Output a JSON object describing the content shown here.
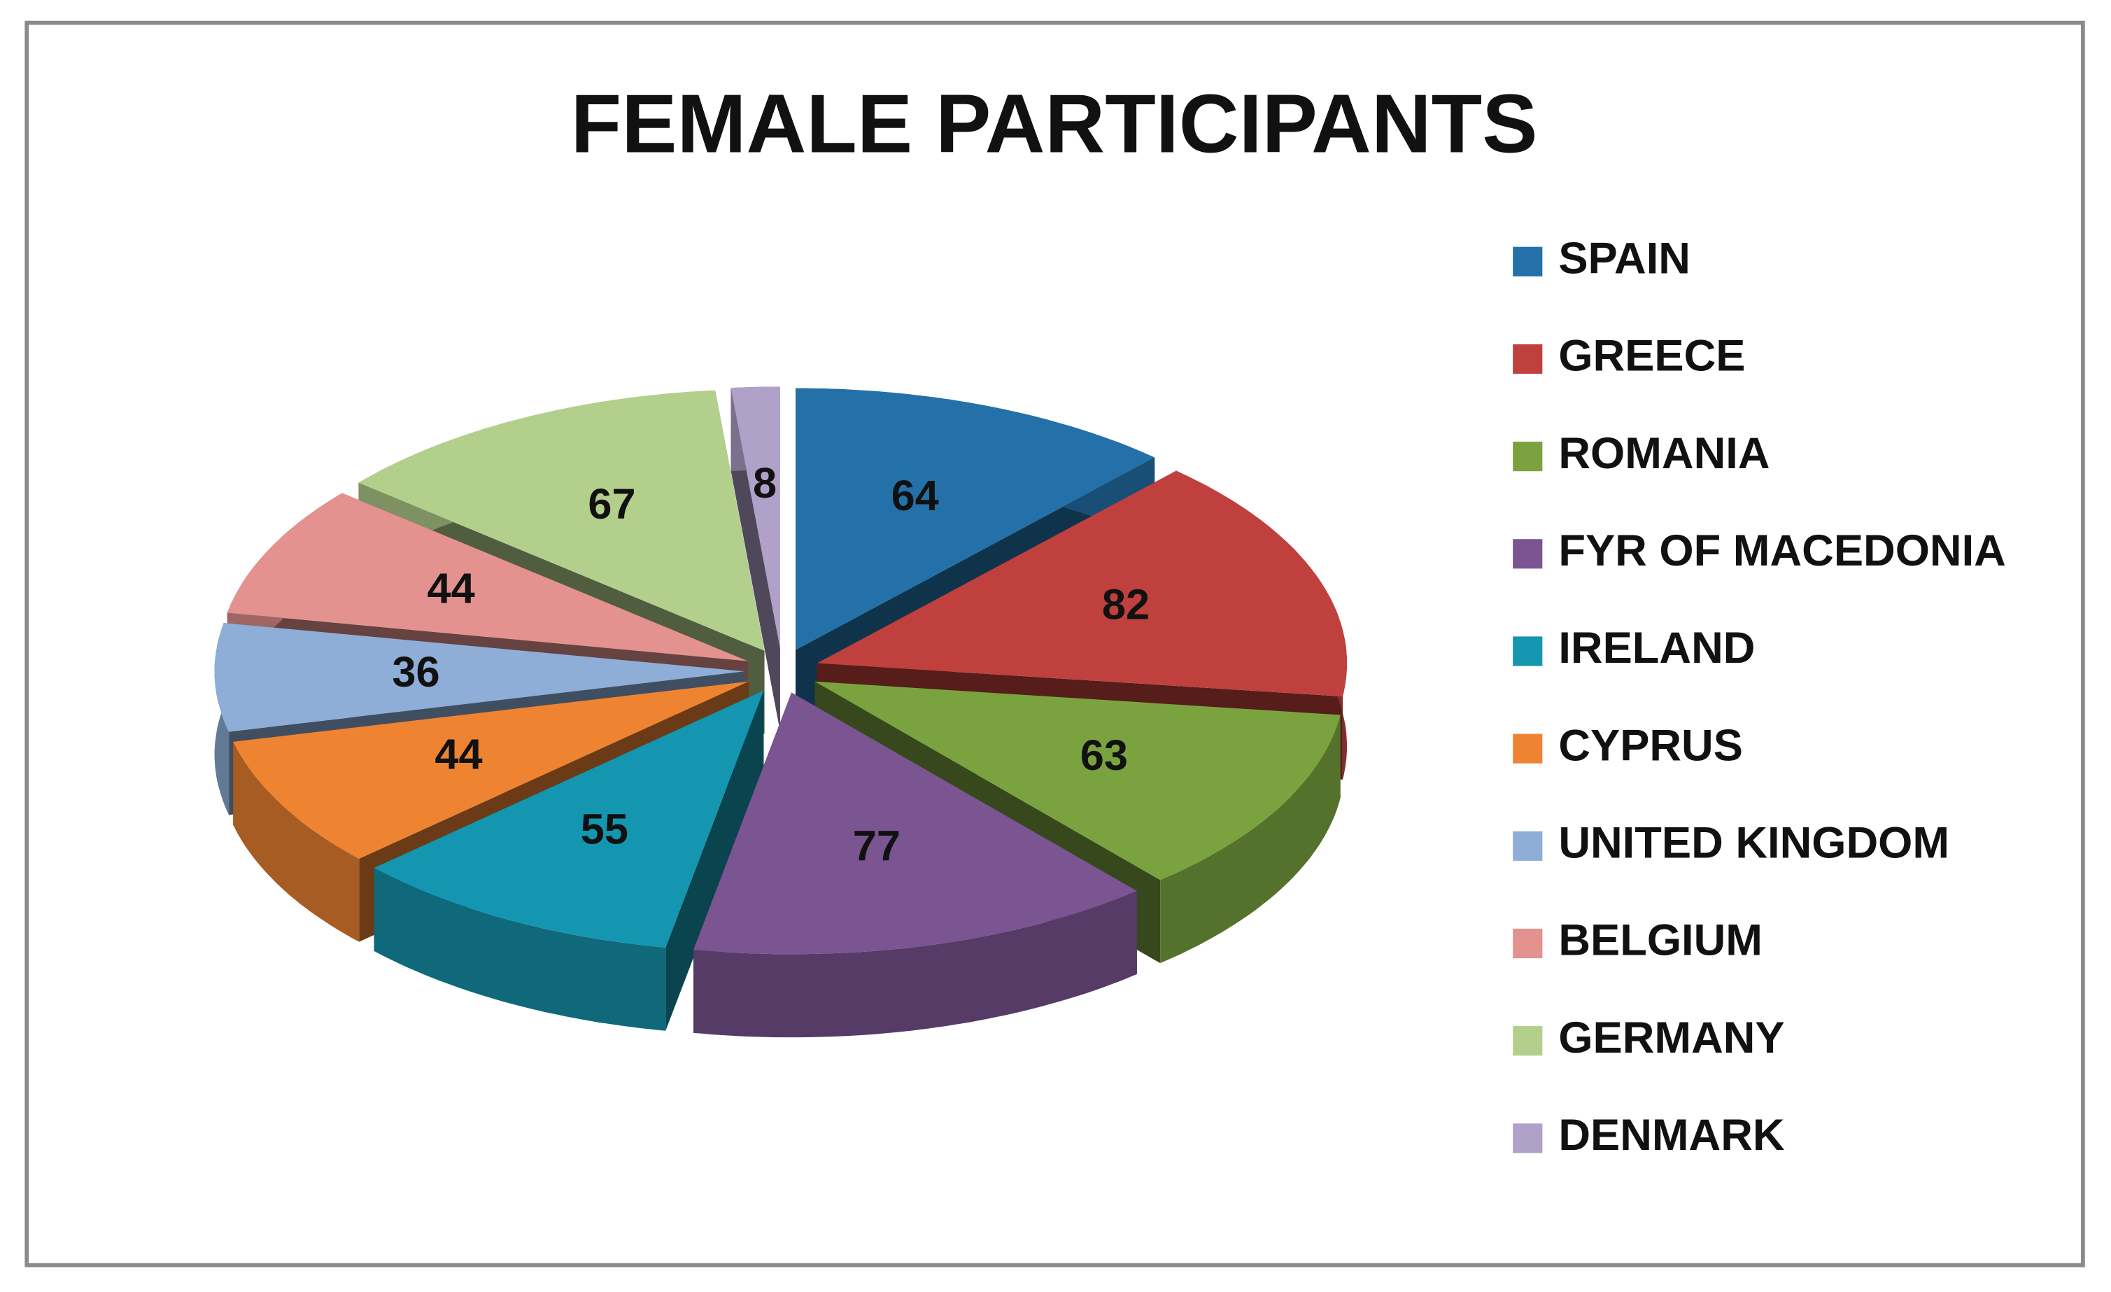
{
  "chart_data": {
    "type": "pie",
    "title": "FEMALE PARTICIPANTS",
    "categories": [
      "SPAIN",
      "GREECE",
      "ROMANIA",
      "FYR OF MACEDONIA",
      "IRELAND",
      "CYPRUS",
      "UNITED KINGDOM",
      "BELGIUM",
      "GERMANY",
      "DENMARK"
    ],
    "values": [
      64,
      82,
      63,
      77,
      55,
      44,
      36,
      44,
      67,
      8
    ],
    "colors": [
      "#2471a9",
      "#c0403d",
      "#7aa33f",
      "#7b5492",
      "#1596b0",
      "#ee8432",
      "#8eaed8",
      "#e3928f",
      "#b3cf8c",
      "#b0a1c9"
    ],
    "legend": "right"
  }
}
